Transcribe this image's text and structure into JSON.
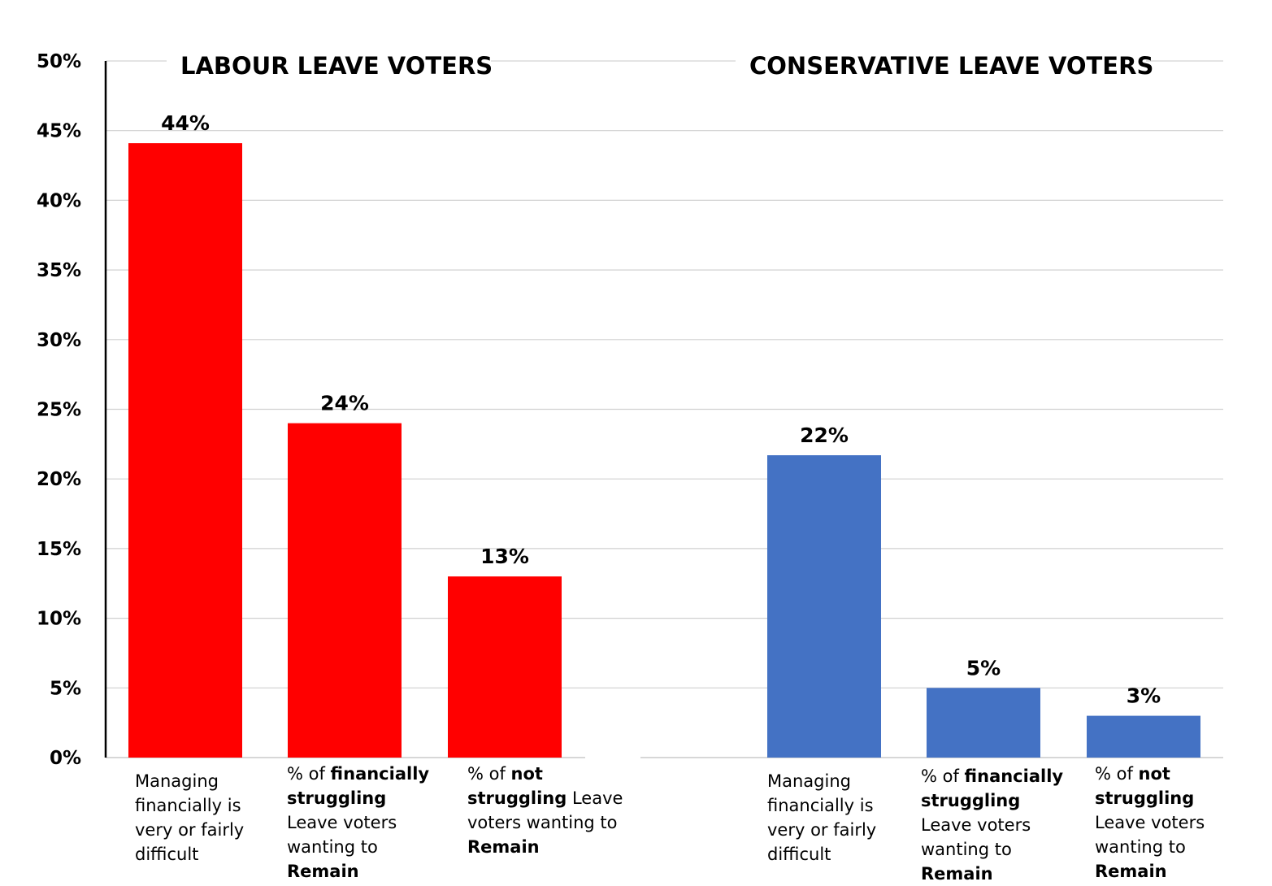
{
  "chart_data": {
    "type": "bar",
    "ylim": [
      0,
      50
    ],
    "yticks": [
      0,
      5,
      10,
      15,
      20,
      25,
      30,
      35,
      40,
      45,
      50
    ],
    "ytick_labels": [
      "0%",
      "5%",
      "10%",
      "15%",
      "20%",
      "25%",
      "30%",
      "35%",
      "40%",
      "45%",
      "50%"
    ],
    "grid": true,
    "groups": [
      {
        "title": "LABOUR LEAVE VOTERS",
        "color": "#ff0000",
        "bars": [
          {
            "value": 44.1,
            "label": "44%",
            "category_parts": [
              {
                "text": "Managing financially is very or fairly difficult",
                "bold": false
              }
            ]
          },
          {
            "value": 24,
            "label": "24%",
            "category_parts": [
              {
                "text": "% of ",
                "bold": false
              },
              {
                "text": "financially struggling",
                "bold": true
              },
              {
                "text": " Leave voters wanting to ",
                "bold": false
              },
              {
                "text": "Remain",
                "bold": true
              }
            ]
          },
          {
            "value": 13,
            "label": "13%",
            "category_parts": [
              {
                "text": "% of ",
                "bold": false
              },
              {
                "text": "not struggling",
                "bold": true
              },
              {
                "text": " Leave voters wanting to ",
                "bold": false
              },
              {
                "text": "Remain",
                "bold": true
              }
            ]
          }
        ]
      },
      {
        "title": "CONSERVATIVE LEAVE VOTERS",
        "color": "#4472c4",
        "bars": [
          {
            "value": 21.7,
            "label": "22%",
            "category_parts": [
              {
                "text": "Managing financially is very or fairly difficult",
                "bold": false
              }
            ]
          },
          {
            "value": 5,
            "label": "5%",
            "category_parts": [
              {
                "text": "% of ",
                "bold": false
              },
              {
                "text": "financially struggling",
                "bold": true
              },
              {
                "text": " Leave voters wanting to ",
                "bold": false
              },
              {
                "text": "Remain",
                "bold": true
              }
            ]
          },
          {
            "value": 3,
            "label": "3%",
            "category_parts": [
              {
                "text": "% of ",
                "bold": false
              },
              {
                "text": "not struggling",
                "bold": true
              },
              {
                "text": " Leave voters wanting to ",
                "bold": false
              },
              {
                "text": "Remain",
                "bold": true
              }
            ]
          }
        ]
      }
    ]
  }
}
